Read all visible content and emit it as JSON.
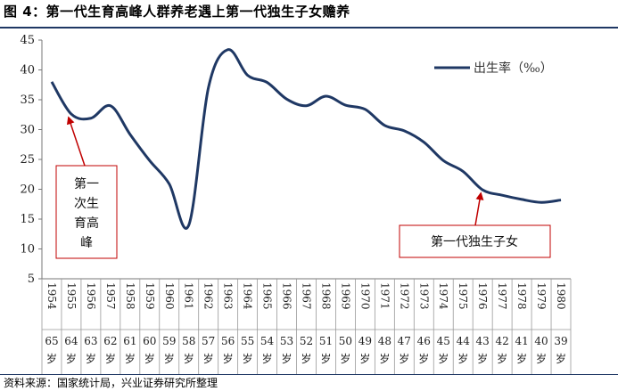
{
  "figure": {
    "title": "图 4：第一代生育高峰人群养老遇上第一代独生子女赡养",
    "source": "资料来源：国家统计局，兴业证券研究所整理"
  },
  "colors": {
    "line": "#1f3864",
    "arrow": "#c00000",
    "annotation_border": "#c00000",
    "rule": "#1f3864"
  },
  "chart_data": {
    "type": "line",
    "title": "",
    "xlabel": "",
    "ylabel": "",
    "ylim": [
      5,
      45
    ],
    "yticks": [
      5,
      10,
      15,
      20,
      25,
      30,
      35,
      40,
      45
    ],
    "grid": false,
    "legend_position": "top-right",
    "categories": [
      "1954",
      "1955",
      "1956",
      "1957",
      "1958",
      "1959",
      "1960",
      "1961",
      "1962",
      "1963",
      "1964",
      "1965",
      "1966",
      "1967",
      "1968",
      "1969",
      "1970",
      "1971",
      "1972",
      "1973",
      "1974",
      "1975",
      "1976",
      "1977",
      "1978",
      "1979",
      "1980"
    ],
    "series": [
      {
        "name": "出生率（‰）",
        "values": [
          38.0,
          32.6,
          31.9,
          34.0,
          29.2,
          24.8,
          20.9,
          14.0,
          37.0,
          43.4,
          39.1,
          37.9,
          35.1,
          34.0,
          35.6,
          34.1,
          33.4,
          30.7,
          29.8,
          27.9,
          24.8,
          23.0,
          19.9,
          19.0,
          18.3,
          17.8,
          18.2
        ]
      }
    ],
    "ages": [
      "65",
      "64",
      "63",
      "62",
      "61",
      "60",
      "59",
      "58",
      "57",
      "56",
      "55",
      "54",
      "53",
      "52",
      "51",
      "50",
      "49",
      "48",
      "47",
      "46",
      "45",
      "44",
      "43",
      "42",
      "41",
      "40",
      "39"
    ],
    "age_unit": "岁",
    "annotations": [
      {
        "lines": [
          "第一",
          "次生",
          "育高",
          "峰"
        ],
        "points_to": "1955"
      },
      {
        "lines": [
          "第一代独生子女"
        ],
        "points_to": "1976"
      }
    ]
  }
}
